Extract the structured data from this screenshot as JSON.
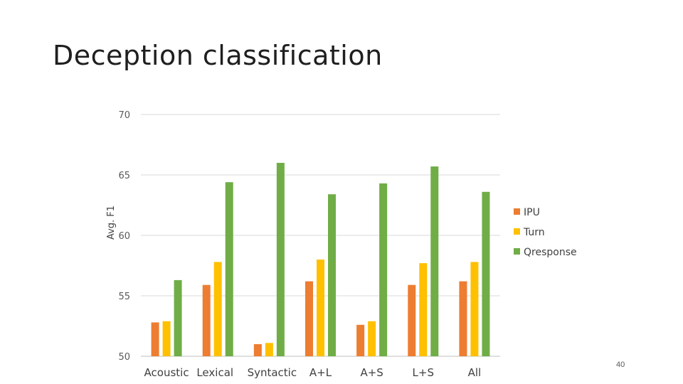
{
  "slide": {
    "title": "Deception classification",
    "page_number": "40"
  },
  "chart_data": {
    "type": "bar",
    "title": "",
    "xlabel": "",
    "ylabel": "Avg. F1",
    "ylim": [
      50,
      70
    ],
    "yticks": [
      "50",
      "55",
      "60",
      "65",
      "70"
    ],
    "grid": true,
    "legend_position": "right",
    "categories": [
      "Acoustic",
      "Lexical",
      "Syntactic",
      "A+L",
      "A+S",
      "L+S",
      "All"
    ],
    "series": [
      {
        "name": "IPU",
        "color": "#ED7D31",
        "values": [
          52.8,
          55.9,
          51.0,
          56.2,
          52.6,
          55.9,
          56.2
        ]
      },
      {
        "name": "Turn",
        "color": "#FFC000",
        "values": [
          52.9,
          57.8,
          51.1,
          58.0,
          52.9,
          57.7,
          57.8
        ]
      },
      {
        "name": "Qresponse",
        "color": "#70AD47",
        "values": [
          56.3,
          64.4,
          66.0,
          63.4,
          64.3,
          65.7,
          63.6
        ]
      }
    ]
  }
}
